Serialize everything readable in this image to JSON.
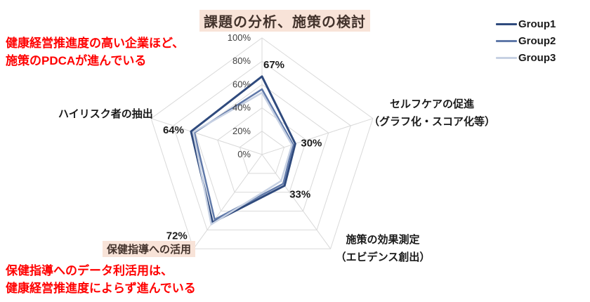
{
  "page": {
    "background": "#ffffff"
  },
  "annotations": {
    "top_left": {
      "line1": "健康経営推進度の高い企業ほど、",
      "line2": "施策のPDCAが進んでいる",
      "color": "#ff0000"
    },
    "bottom_left": {
      "line1": "保健指導へのデータ利活用は、",
      "line2": "健康経営推進度によらず進んでいる",
      "color": "#ff0000"
    }
  },
  "highlight_color": "#f8e3d8",
  "chart_data": {
    "type": "radar",
    "axes": [
      {
        "label": "課題の分析、施策の検討",
        "highlighted": true
      },
      {
        "label": "セルフケアの促進",
        "label2": "（グラフ化・スコア化等）"
      },
      {
        "label": "施策の効果測定",
        "label2": "（エビデンス創出）"
      },
      {
        "label": "保健指導への活用",
        "highlighted": true
      },
      {
        "label": "ハイリスク者の抽出"
      }
    ],
    "max": 100,
    "rings": [
      20,
      40,
      60,
      80,
      100
    ],
    "tick_labels": [
      "0%",
      "20%",
      "40%",
      "60%",
      "80%",
      "100%"
    ],
    "grid_color": "#d9d9d9",
    "series": [
      {
        "name": "Group1",
        "color": "#2f4a7d",
        "stroke_width": 3,
        "values": [
          67,
          30,
          33,
          72,
          64
        ]
      },
      {
        "name": "Group2",
        "color": "#6079a9",
        "stroke_width": 2.5,
        "values": [
          56,
          28,
          31,
          69,
          61
        ]
      },
      {
        "name": "Group3",
        "color": "#c7d1e3",
        "stroke_width": 2.5,
        "values": [
          53,
          27,
          28,
          74,
          62
        ]
      }
    ],
    "data_labels": {
      "series": "Group1",
      "values": [
        "67%",
        "30%",
        "33%",
        "72%",
        "64%"
      ]
    },
    "legend_position": "top-right"
  }
}
